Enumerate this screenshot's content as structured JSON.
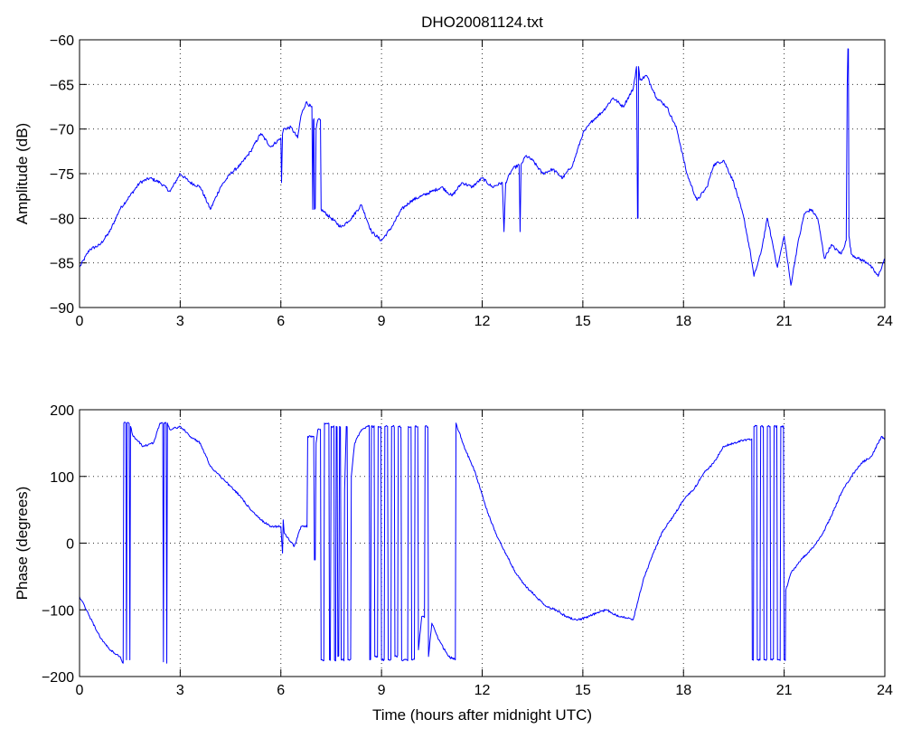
{
  "chart_data": [
    {
      "type": "line",
      "title": "DHO20081124.txt",
      "xlabel": "",
      "ylabel": "Amplitude (dB)",
      "xlim": [
        0,
        24
      ],
      "ylim": [
        -90,
        -60
      ],
      "xticks": [
        "0",
        "3",
        "6",
        "9",
        "12",
        "15",
        "18",
        "21",
        "24"
      ],
      "yticks": [
        "-90",
        "-85",
        "-80",
        "-75",
        "-70",
        "-65",
        "-60"
      ],
      "grid": true,
      "line_color": "#0000ff",
      "series": [
        {
          "x": [
            0.0,
            0.3,
            0.6,
            0.9,
            1.2,
            1.5,
            1.8,
            2.1,
            2.4,
            2.7,
            3.0,
            3.3,
            3.6,
            3.9,
            4.2,
            4.5,
            4.8,
            5.1,
            5.4,
            5.7,
            6.0,
            6.02,
            6.05,
            6.08,
            6.3,
            6.5,
            6.6,
            6.75,
            6.9,
            6.95,
            6.97,
            7.0,
            7.05,
            7.1,
            7.2,
            7.5,
            7.8,
            8.1,
            8.4,
            8.7,
            9.0,
            9.3,
            9.6,
            9.9,
            10.2,
            10.5,
            10.8,
            11.1,
            11.4,
            11.7,
            12.0,
            12.3,
            12.6,
            12.65,
            12.7,
            12.9,
            13.1,
            13.13,
            13.16,
            13.3,
            13.5,
            13.8,
            14.1,
            14.4,
            14.7,
            15.0,
            15.3,
            15.6,
            15.9,
            16.2,
            16.5,
            16.6,
            16.63,
            16.66,
            16.7,
            16.9,
            17.2,
            17.5,
            17.8,
            18.1,
            18.4,
            18.7,
            18.9,
            19.2,
            19.5,
            19.8,
            20.0,
            20.1,
            20.3,
            20.5,
            20.8,
            21.0,
            21.2,
            21.4,
            21.6,
            21.8,
            22.0,
            22.2,
            22.4,
            22.7,
            22.85,
            22.88,
            22.9,
            22.93,
            23.0,
            23.2,
            23.5,
            23.8,
            24.0
          ],
          "y": [
            -85.5,
            -83.5,
            -83,
            -81.5,
            -79,
            -77.5,
            -76,
            -75.5,
            -76,
            -77,
            -75,
            -76,
            -76.5,
            -79,
            -76.5,
            -75,
            -74,
            -72.5,
            -70.5,
            -72,
            -71,
            -76,
            -70.5,
            -70,
            -69.8,
            -71,
            -68.5,
            -67,
            -67.5,
            -79,
            -69,
            -79,
            -70,
            -69,
            -79,
            -80,
            -81,
            -80,
            -78.5,
            -81.5,
            -82.5,
            -81,
            -79,
            -78,
            -77.5,
            -77,
            -76.5,
            -77.5,
            -76,
            -76.5,
            -75.5,
            -76.5,
            -76,
            -81.5,
            -76,
            -74.5,
            -74,
            -81.5,
            -74,
            -73,
            -73.5,
            -75,
            -74.5,
            -75.5,
            -74,
            -70.5,
            -69,
            -68,
            -66.5,
            -67.5,
            -65.5,
            -63,
            -80,
            -63,
            -64.5,
            -64,
            -66.5,
            -67.5,
            -70,
            -75,
            -78,
            -76.5,
            -74,
            -73.5,
            -76,
            -80,
            -84,
            -86.5,
            -84,
            -80,
            -85.5,
            -82,
            -87.5,
            -83,
            -79.5,
            -79,
            -80,
            -84.5,
            -83,
            -84,
            -82.5,
            -65,
            -61,
            -82,
            -84,
            -84.5,
            -85,
            -86.5,
            -84.5
          ]
        }
      ]
    },
    {
      "type": "line",
      "title": "",
      "xlabel": "Time (hours after midnight UTC)",
      "ylabel": "Phase (degrees)",
      "xlim": [
        0,
        24
      ],
      "ylim": [
        -200,
        200
      ],
      "xticks": [
        "0",
        "3",
        "6",
        "9",
        "12",
        "15",
        "18",
        "21",
        "24"
      ],
      "yticks": [
        "-200",
        "-100",
        "0",
        "100",
        "200"
      ],
      "grid": true,
      "line_color": "#0000ff",
      "series": [
        {
          "x": [
            0.0,
            0.3,
            0.6,
            0.9,
            1.2,
            1.3,
            1.32,
            1.4,
            1.42,
            1.5,
            1.52,
            1.6,
            1.9,
            2.2,
            2.4,
            2.5,
            2.52,
            2.6,
            2.62,
            2.7,
            3.0,
            3.3,
            3.6,
            3.9,
            4.2,
            4.5,
            4.8,
            5.1,
            5.4,
            5.7,
            6.0,
            6.05,
            6.07,
            6.1,
            6.4,
            6.6,
            6.8,
            7.0,
            7.05,
            7.1,
            7.2,
            7.3,
            7.45,
            7.5,
            7.6,
            7.65,
            7.7,
            7.75,
            7.8,
            7.9,
            7.95,
            8.0,
            8.1,
            8.2,
            8.4,
            8.6,
            8.65,
            8.7,
            8.8,
            8.9,
            9.0,
            9.1,
            9.2,
            9.3,
            9.4,
            9.5,
            9.6,
            9.8,
            9.9,
            10.0,
            10.1,
            10.2,
            10.3,
            10.4,
            10.5,
            10.7,
            11.0,
            11.2,
            11.22,
            11.25,
            11.5,
            11.8,
            12.1,
            12.4,
            12.7,
            13.0,
            13.3,
            13.6,
            13.9,
            14.2,
            14.5,
            14.8,
            15.1,
            15.4,
            15.7,
            16.0,
            16.3,
            16.5,
            16.8,
            17.1,
            17.4,
            17.7,
            18.0,
            18.3,
            18.6,
            18.9,
            19.2,
            19.5,
            19.8,
            20.0,
            20.05,
            20.1,
            20.2,
            20.3,
            20.4,
            20.5,
            20.6,
            20.7,
            20.8,
            20.9,
            21.0,
            21.05,
            21.2,
            21.5,
            21.8,
            22.1,
            22.4,
            22.7,
            23.0,
            23.3,
            23.6,
            23.9,
            24.0
          ],
          "y": [
            -80,
            -110,
            -140,
            -160,
            -170,
            -180,
            180,
            -175,
            180,
            -175,
            175,
            160,
            145,
            150,
            180,
            -178,
            180,
            -180,
            180,
            170,
            175,
            160,
            150,
            115,
            100,
            85,
            70,
            50,
            35,
            25,
            25,
            -15,
            35,
            15,
            -5,
            25,
            160,
            -25,
            150,
            170,
            -175,
            180,
            -175,
            175,
            -175,
            175,
            -170,
            175,
            -175,
            80,
            175,
            -175,
            100,
            150,
            170,
            175,
            -175,
            175,
            -170,
            175,
            -175,
            175,
            -175,
            175,
            -170,
            175,
            -175,
            175,
            -175,
            175,
            -160,
            -110,
            175,
            -170,
            -120,
            -145,
            -170,
            -175,
            180,
            175,
            140,
            105,
            55,
            15,
            -15,
            -45,
            -65,
            -80,
            -95,
            -100,
            -110,
            -115,
            -112,
            -105,
            -100,
            -108,
            -112,
            -115,
            -55,
            -15,
            20,
            40,
            65,
            80,
            105,
            120,
            145,
            150,
            155,
            155,
            -175,
            175,
            -175,
            175,
            -175,
            175,
            -175,
            175,
            -175,
            175,
            -175,
            -70,
            -45,
            -25,
            -10,
            10,
            40,
            75,
            100,
            120,
            130,
            160,
            155
          ]
        }
      ]
    }
  ]
}
